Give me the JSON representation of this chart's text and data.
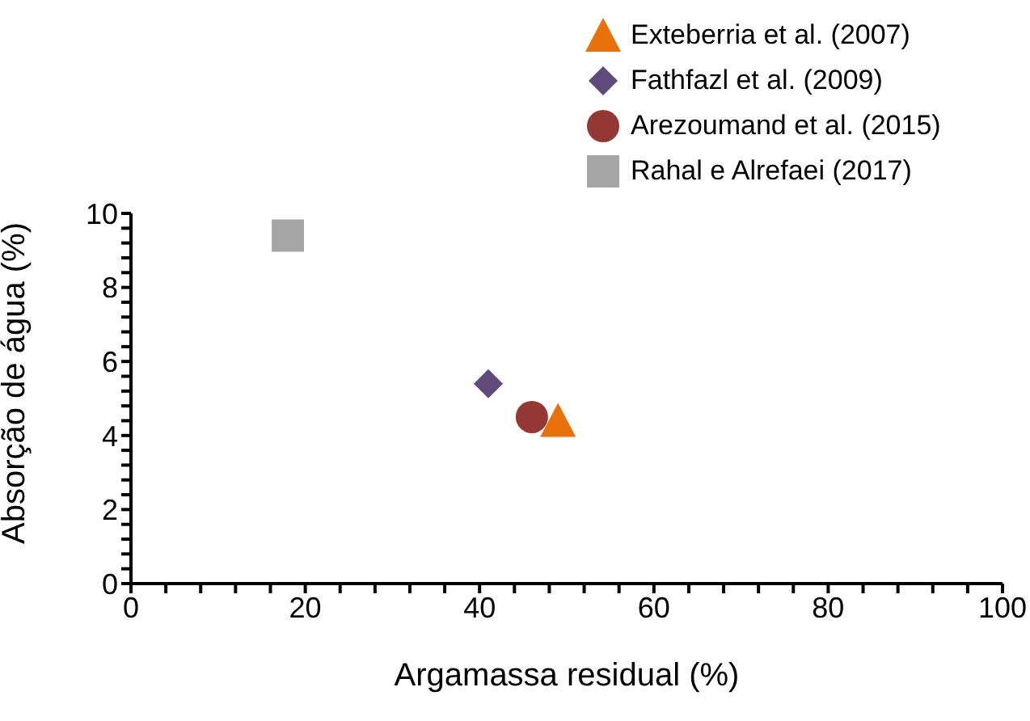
{
  "chart_data": {
    "type": "scatter",
    "xlabel": "Argamassa residual (%)",
    "ylabel": "Absorção de água (%)",
    "xlim": [
      0,
      100
    ],
    "xticks": [
      0,
      {
        "value": 4,
        "label": null
      },
      {
        "value": 8,
        "label": null
      },
      {
        "value": 12,
        "label": null
      },
      {
        "value": 16,
        "label": null
      },
      20,
      {
        "value": 24,
        "label": null
      },
      {
        "value": 28,
        "label": null
      },
      {
        "value": 32,
        "label": null
      },
      {
        "value": 36,
        "label": null
      },
      40,
      {
        "value": 44,
        "label": null
      },
      {
        "value": 48,
        "label": null
      },
      {
        "value": 52,
        "label": null
      },
      {
        "value": 56,
        "label": null
      },
      60,
      {
        "value": 64,
        "label": null
      },
      {
        "value": 68,
        "label": null
      },
      {
        "value": 72,
        "label": null
      },
      {
        "value": 76,
        "label": null
      },
      80,
      {
        "value": 84,
        "label": null
      },
      {
        "value": 88,
        "label": null
      },
      {
        "value": 92,
        "label": null
      },
      {
        "value": 96,
        "label": null
      },
      100
    ],
    "ylim": [
      0,
      10
    ],
    "yticks": [
      0,
      {
        "value": 0.4,
        "label": null
      },
      {
        "value": 0.8,
        "label": null
      },
      {
        "value": 1.2,
        "label": null
      },
      {
        "value": 1.6,
        "label": null
      },
      2,
      {
        "value": 2.4,
        "label": null
      },
      {
        "value": 2.8,
        "label": null
      },
      {
        "value": 3.2,
        "label": null
      },
      {
        "value": 3.6,
        "label": null
      },
      4,
      {
        "value": 4.4,
        "label": null
      },
      {
        "value": 4.8,
        "label": null
      },
      {
        "value": 5.2,
        "label": null
      },
      {
        "value": 5.6,
        "label": null
      },
      6,
      {
        "value": 6.4,
        "label": null
      },
      {
        "value": 6.8,
        "label": null
      },
      {
        "value": 7.2,
        "label": null
      },
      {
        "value": 7.6,
        "label": null
      },
      8,
      {
        "value": 8.4,
        "label": null
      },
      {
        "value": 8.8,
        "label": null
      },
      {
        "value": 9.2,
        "label": null
      },
      {
        "value": 9.6,
        "label": null
      },
      10
    ],
    "grid": false,
    "legend": "top right",
    "series": [
      {
        "name": "Exteberria et al. (2007)",
        "color": "#e8710a",
        "marker": "triangle",
        "x": [
          49
        ],
        "values": [
          4.4
        ]
      },
      {
        "name": "Fathfazl et al. (2009)",
        "color": "#604a7b",
        "marker": "diamond",
        "x": [
          41
        ],
        "values": [
          5.4
        ]
      },
      {
        "name": "Arezoumand et al. (2015)",
        "color": "#953735",
        "marker": "circle",
        "x": [
          46
        ],
        "values": [
          4.5
        ]
      },
      {
        "name": "Rahal e Alrefaei (2017)",
        "color": "#a5a5a5",
        "marker": "square",
        "x": [
          18
        ],
        "values": [
          9.4
        ]
      }
    ]
  }
}
